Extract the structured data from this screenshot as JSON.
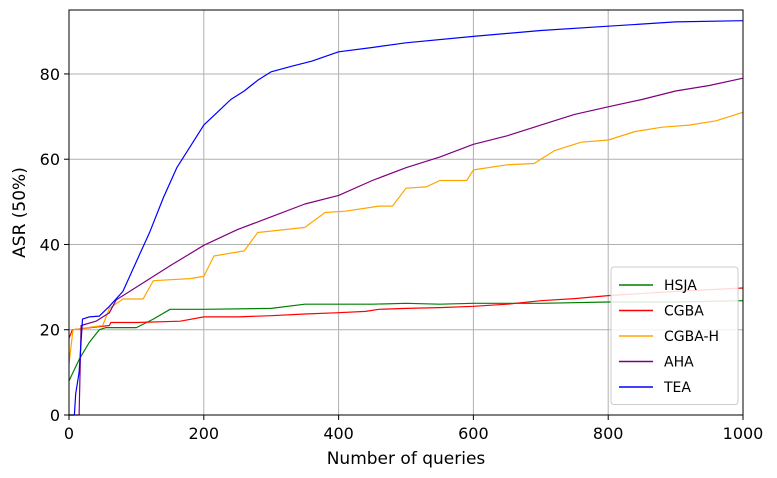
{
  "chart_data": {
    "type": "line",
    "title": "",
    "xlabel": "Number of queries",
    "ylabel": "ASR (50%)",
    "xlim": [
      0,
      1000
    ],
    "ylim": [
      0,
      95
    ],
    "xticks": [
      0,
      200,
      400,
      600,
      800,
      1000
    ],
    "yticks": [
      0,
      20,
      40,
      60,
      80
    ],
    "grid": true,
    "legend_position": "bottom-right",
    "series": [
      {
        "name": "HSJA",
        "color": "#008000",
        "points": [
          [
            0,
            8
          ],
          [
            15,
            13
          ],
          [
            30,
            17
          ],
          [
            45,
            20
          ],
          [
            55,
            20.5
          ],
          [
            100,
            20.5
          ],
          [
            125,
            22.5
          ],
          [
            150,
            24.8
          ],
          [
            200,
            24.8
          ],
          [
            300,
            25
          ],
          [
            350,
            26
          ],
          [
            450,
            26
          ],
          [
            500,
            26.2
          ],
          [
            550,
            26
          ],
          [
            600,
            26.2
          ],
          [
            700,
            26.2
          ],
          [
            800,
            26.5
          ],
          [
            900,
            26.5
          ],
          [
            1000,
            26.8
          ]
        ]
      },
      {
        "name": "CGBA",
        "color": "#ff0000",
        "points": [
          [
            0,
            18
          ],
          [
            5,
            20
          ],
          [
            60,
            21
          ],
          [
            62,
            21.7
          ],
          [
            100,
            21.7
          ],
          [
            165,
            22
          ],
          [
            200,
            23
          ],
          [
            250,
            23
          ],
          [
            300,
            23.3
          ],
          [
            350,
            23.7
          ],
          [
            400,
            24
          ],
          [
            440,
            24.3
          ],
          [
            460,
            24.8
          ],
          [
            500,
            25
          ],
          [
            550,
            25.2
          ],
          [
            600,
            25.5
          ],
          [
            650,
            26
          ],
          [
            700,
            26.8
          ],
          [
            750,
            27.3
          ],
          [
            800,
            28
          ],
          [
            900,
            29
          ],
          [
            1000,
            29.8
          ]
        ]
      },
      {
        "name": "CGBA-H",
        "color": "#ffa500",
        "points": [
          [
            0,
            12
          ],
          [
            6,
            20
          ],
          [
            50,
            21
          ],
          [
            60,
            25
          ],
          [
            80,
            27.2
          ],
          [
            110,
            27.2
          ],
          [
            125,
            31.5
          ],
          [
            180,
            32
          ],
          [
            200,
            32.5
          ],
          [
            215,
            37.3
          ],
          [
            260,
            38.5
          ],
          [
            280,
            42.8
          ],
          [
            320,
            43.5
          ],
          [
            350,
            44
          ],
          [
            380,
            47.5
          ],
          [
            410,
            47.8
          ],
          [
            460,
            49
          ],
          [
            480,
            49
          ],
          [
            500,
            53.2
          ],
          [
            530,
            53.5
          ],
          [
            550,
            55
          ],
          [
            590,
            55
          ],
          [
            600,
            57.5
          ],
          [
            650,
            58.7
          ],
          [
            690,
            59
          ],
          [
            720,
            62
          ],
          [
            760,
            64
          ],
          [
            800,
            64.5
          ],
          [
            840,
            66.5
          ],
          [
            880,
            67.5
          ],
          [
            920,
            68
          ],
          [
            960,
            69
          ],
          [
            1000,
            71
          ]
        ]
      },
      {
        "name": "AHA",
        "color": "#800080",
        "points": [
          [
            0,
            0
          ],
          [
            15,
            0
          ],
          [
            18,
            21
          ],
          [
            40,
            22
          ],
          [
            60,
            24
          ],
          [
            70,
            27
          ],
          [
            100,
            30
          ],
          [
            150,
            35
          ],
          [
            200,
            39.8
          ],
          [
            250,
            43.5
          ],
          [
            300,
            46.5
          ],
          [
            350,
            49.5
          ],
          [
            400,
            51.5
          ],
          [
            450,
            55
          ],
          [
            500,
            58
          ],
          [
            550,
            60.5
          ],
          [
            600,
            63.5
          ],
          [
            650,
            65.5
          ],
          [
            700,
            68
          ],
          [
            750,
            70.5
          ],
          [
            800,
            72.3
          ],
          [
            850,
            74
          ],
          [
            900,
            76
          ],
          [
            950,
            77.3
          ],
          [
            1000,
            79
          ]
        ]
      },
      {
        "name": "TEA",
        "color": "#0000ff",
        "points": [
          [
            0,
            0
          ],
          [
            8,
            0
          ],
          [
            10,
            5
          ],
          [
            15,
            10
          ],
          [
            20,
            22.5
          ],
          [
            30,
            23
          ],
          [
            45,
            23.2
          ],
          [
            60,
            25.5
          ],
          [
            80,
            29
          ],
          [
            100,
            36
          ],
          [
            120,
            43
          ],
          [
            140,
            51
          ],
          [
            160,
            58
          ],
          [
            180,
            63
          ],
          [
            200,
            68
          ],
          [
            220,
            71
          ],
          [
            240,
            74
          ],
          [
            260,
            76
          ],
          [
            280,
            78.5
          ],
          [
            300,
            80.5
          ],
          [
            330,
            81.8
          ],
          [
            360,
            83
          ],
          [
            400,
            85.2
          ],
          [
            450,
            86.2
          ],
          [
            500,
            87.3
          ],
          [
            600,
            88.8
          ],
          [
            700,
            90.2
          ],
          [
            800,
            91.2
          ],
          [
            900,
            92.2
          ],
          [
            1000,
            92.5
          ]
        ]
      }
    ]
  }
}
